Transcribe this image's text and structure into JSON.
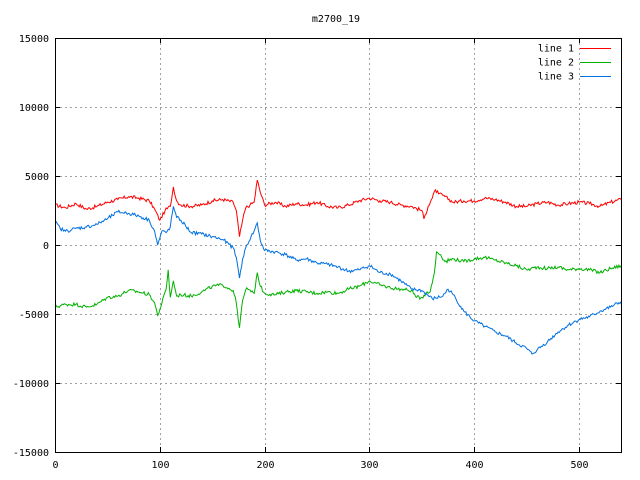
{
  "chart_data": {
    "type": "line",
    "title": "m2700_19",
    "xlabel": "",
    "ylabel": "",
    "xlim": [
      0,
      540
    ],
    "ylim": [
      -15000,
      15000
    ],
    "x_ticks": [
      0,
      100,
      200,
      300,
      400,
      500
    ],
    "y_ticks": [
      -15000,
      -10000,
      -5000,
      0,
      5000,
      10000,
      15000
    ],
    "grid": true,
    "legend_position": "top-right",
    "series": [
      {
        "name": "line 1",
        "color": "#ff0000",
        "points": [
          [
            0,
            2900
          ],
          [
            10,
            2700
          ],
          [
            20,
            3000
          ],
          [
            30,
            2600
          ],
          [
            40,
            2800
          ],
          [
            50,
            3100
          ],
          [
            60,
            3300
          ],
          [
            70,
            3500
          ],
          [
            80,
            3400
          ],
          [
            90,
            3200
          ],
          [
            95,
            2600
          ],
          [
            100,
            1800
          ],
          [
            105,
            2500
          ],
          [
            110,
            2800
          ],
          [
            113,
            4200
          ],
          [
            116,
            3200
          ],
          [
            120,
            2900
          ],
          [
            130,
            2800
          ],
          [
            140,
            2900
          ],
          [
            150,
            3200
          ],
          [
            160,
            3300
          ],
          [
            170,
            3100
          ],
          [
            173,
            2500
          ],
          [
            176,
            600
          ],
          [
            179,
            1800
          ],
          [
            182,
            2700
          ],
          [
            186,
            2900
          ],
          [
            190,
            3100
          ],
          [
            193,
            4700
          ],
          [
            196,
            3800
          ],
          [
            200,
            2900
          ],
          [
            210,
            3100
          ],
          [
            220,
            2800
          ],
          [
            230,
            3000
          ],
          [
            240,
            2900
          ],
          [
            250,
            3100
          ],
          [
            260,
            2800
          ],
          [
            270,
            2700
          ],
          [
            280,
            2900
          ],
          [
            290,
            3200
          ],
          [
            300,
            3400
          ],
          [
            310,
            3200
          ],
          [
            320,
            3100
          ],
          [
            330,
            2900
          ],
          [
            340,
            2800
          ],
          [
            350,
            2500
          ],
          [
            352,
            1900
          ],
          [
            356,
            2800
          ],
          [
            360,
            3400
          ],
          [
            363,
            4000
          ],
          [
            366,
            3700
          ],
          [
            370,
            3600
          ],
          [
            380,
            3100
          ],
          [
            390,
            3200
          ],
          [
            400,
            3200
          ],
          [
            410,
            3400
          ],
          [
            420,
            3300
          ],
          [
            430,
            3100
          ],
          [
            440,
            2800
          ],
          [
            450,
            2800
          ],
          [
            460,
            3000
          ],
          [
            470,
            3100
          ],
          [
            480,
            2900
          ],
          [
            490,
            3000
          ],
          [
            500,
            3100
          ],
          [
            510,
            3000
          ],
          [
            520,
            2800
          ],
          [
            530,
            3100
          ],
          [
            540,
            3300
          ]
        ]
      },
      {
        "name": "line 2",
        "color": "#00b000",
        "points": [
          [
            0,
            -4500
          ],
          [
            10,
            -4300
          ],
          [
            20,
            -4300
          ],
          [
            30,
            -4500
          ],
          [
            40,
            -4300
          ],
          [
            50,
            -3800
          ],
          [
            60,
            -3700
          ],
          [
            70,
            -3300
          ],
          [
            80,
            -3400
          ],
          [
            90,
            -3600
          ],
          [
            95,
            -4200
          ],
          [
            98,
            -5100
          ],
          [
            102,
            -4200
          ],
          [
            106,
            -3200
          ],
          [
            108,
            -1800
          ],
          [
            110,
            -3800
          ],
          [
            113,
            -2600
          ],
          [
            116,
            -3700
          ],
          [
            120,
            -3600
          ],
          [
            130,
            -3700
          ],
          [
            140,
            -3400
          ],
          [
            150,
            -3000
          ],
          [
            160,
            -2900
          ],
          [
            170,
            -3300
          ],
          [
            173,
            -4200
          ],
          [
            176,
            -6000
          ],
          [
            179,
            -4000
          ],
          [
            183,
            -3100
          ],
          [
            187,
            -3400
          ],
          [
            190,
            -3500
          ],
          [
            193,
            -2000
          ],
          [
            196,
            -3000
          ],
          [
            200,
            -3500
          ],
          [
            210,
            -3600
          ],
          [
            220,
            -3400
          ],
          [
            230,
            -3300
          ],
          [
            240,
            -3400
          ],
          [
            250,
            -3500
          ],
          [
            260,
            -3400
          ],
          [
            270,
            -3500
          ],
          [
            280,
            -3200
          ],
          [
            290,
            -3000
          ],
          [
            300,
            -2600
          ],
          [
            310,
            -2900
          ],
          [
            320,
            -3100
          ],
          [
            330,
            -3200
          ],
          [
            340,
            -3300
          ],
          [
            345,
            -3800
          ],
          [
            350,
            -3800
          ],
          [
            355,
            -3400
          ],
          [
            358,
            -3400
          ],
          [
            362,
            -2000
          ],
          [
            364,
            -500
          ],
          [
            368,
            -700
          ],
          [
            372,
            -1200
          ],
          [
            380,
            -1000
          ],
          [
            390,
            -1200
          ],
          [
            400,
            -1000
          ],
          [
            410,
            -900
          ],
          [
            420,
            -1100
          ],
          [
            430,
            -1300
          ],
          [
            440,
            -1500
          ],
          [
            450,
            -1800
          ],
          [
            460,
            -1600
          ],
          [
            470,
            -1700
          ],
          [
            480,
            -1600
          ],
          [
            490,
            -1800
          ],
          [
            500,
            -1700
          ],
          [
            510,
            -1800
          ],
          [
            520,
            -2000
          ],
          [
            530,
            -1700
          ],
          [
            540,
            -1500
          ]
        ]
      },
      {
        "name": "line 3",
        "color": "#0070e0",
        "points": [
          [
            0,
            1700
          ],
          [
            5,
            1200
          ],
          [
            10,
            1000
          ],
          [
            20,
            1200
          ],
          [
            30,
            1300
          ],
          [
            40,
            1500
          ],
          [
            50,
            1900
          ],
          [
            60,
            2400
          ],
          [
            70,
            2300
          ],
          [
            80,
            2100
          ],
          [
            90,
            1800
          ],
          [
            95,
            1000
          ],
          [
            98,
            0
          ],
          [
            102,
            1000
          ],
          [
            106,
            900
          ],
          [
            110,
            1300
          ],
          [
            113,
            2800
          ],
          [
            116,
            2000
          ],
          [
            120,
            1800
          ],
          [
            130,
            900
          ],
          [
            140,
            800
          ],
          [
            150,
            600
          ],
          [
            160,
            400
          ],
          [
            170,
            -200
          ],
          [
            173,
            -900
          ],
          [
            176,
            -2400
          ],
          [
            179,
            -1000
          ],
          [
            183,
            0
          ],
          [
            187,
            600
          ],
          [
            190,
            1000
          ],
          [
            193,
            1600
          ],
          [
            196,
            300
          ],
          [
            200,
            -400
          ],
          [
            210,
            -500
          ],
          [
            220,
            -700
          ],
          [
            230,
            -1100
          ],
          [
            240,
            -1000
          ],
          [
            250,
            -1300
          ],
          [
            260,
            -1400
          ],
          [
            270,
            -1600
          ],
          [
            280,
            -1900
          ],
          [
            290,
            -1800
          ],
          [
            300,
            -1500
          ],
          [
            310,
            -2000
          ],
          [
            320,
            -2100
          ],
          [
            330,
            -2600
          ],
          [
            340,
            -3200
          ],
          [
            350,
            -3300
          ],
          [
            360,
            -3900
          ],
          [
            370,
            -3700
          ],
          [
            375,
            -3200
          ],
          [
            380,
            -3600
          ],
          [
            390,
            -4800
          ],
          [
            400,
            -5500
          ],
          [
            410,
            -5900
          ],
          [
            420,
            -6300
          ],
          [
            430,
            -6600
          ],
          [
            440,
            -7100
          ],
          [
            450,
            -7500
          ],
          [
            455,
            -7900
          ],
          [
            460,
            -7600
          ],
          [
            470,
            -7000
          ],
          [
            480,
            -6300
          ],
          [
            490,
            -5800
          ],
          [
            500,
            -5400
          ],
          [
            510,
            -5200
          ],
          [
            520,
            -4800
          ],
          [
            530,
            -4500
          ],
          [
            540,
            -4100
          ]
        ]
      }
    ]
  }
}
